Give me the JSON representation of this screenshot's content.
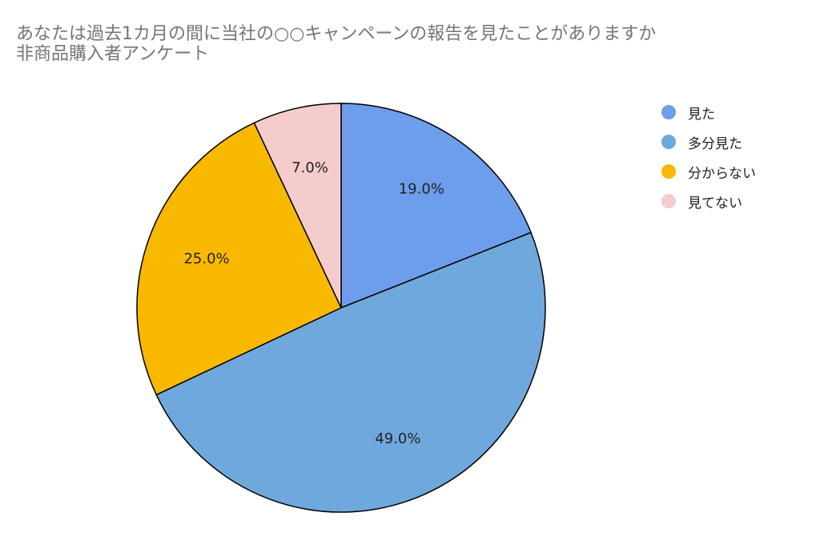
{
  "chart_data": {
    "type": "pie",
    "title": "あなたは過去1カ月の間に当社の○○キャンペーンの報告を見たことがありますか",
    "subtitle": "非商品購入者アンケート",
    "slices": [
      {
        "label": "見た",
        "value": 19.0,
        "display": "19.0%",
        "color": "#6d9eeb"
      },
      {
        "label": "多分見た",
        "value": 49.0,
        "display": "49.0%",
        "color": "#6fa8dc"
      },
      {
        "label": "分からない",
        "value": 25.0,
        "display": "25.0%",
        "color": "#f9b900"
      },
      {
        "label": "見てない",
        "value": 7.0,
        "display": "7.0%",
        "color": "#f4cccc"
      }
    ],
    "legend_position": "right"
  }
}
